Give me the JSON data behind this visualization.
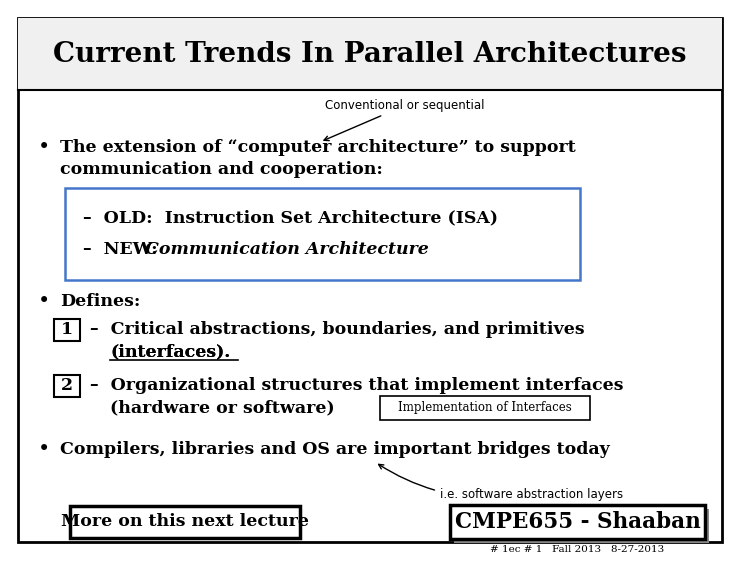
{
  "title": "Current Trends In Parallel Architectures",
  "bg_color": "#ffffff",
  "border_color": "#000000",
  "title_fontsize": 20,
  "body_fontsize": 12.5,
  "small_fontsize": 8.5,
  "tiny_fontsize": 7.5,
  "conventional_label": "Conventional or sequential",
  "bullet1_line1": "The extension of “computer architecture” to support",
  "bullet1_line2": "communication and cooperation:",
  "box_line1": "–  OLD:  Instruction Set Architecture (ISA)",
  "box_line2_prefix": "–  NEW: ",
  "box_line2_italic": "Communication Architecture",
  "bullet2": "Defines:",
  "item1_prefix": "1",
  "item1_line1": "–  Critical abstractions, boundaries, and primitives",
  "item1_line2": "(interfaces).",
  "item2_prefix": "2",
  "item2_line1": "–  Organizational structures that implement interfaces",
  "item2_line2": "(hardware or software)",
  "impl_label": "Implementation of Interfaces",
  "bullet3": "Compilers, libraries and OS are important bridges today",
  "ie_label": "i.e. software abstraction layers",
  "more_label": "More on this next lecture",
  "cmpe_label": "CMPE655 - Shaaban",
  "footer": "# 1ec # 1   Fall 2013   8-27-2013"
}
